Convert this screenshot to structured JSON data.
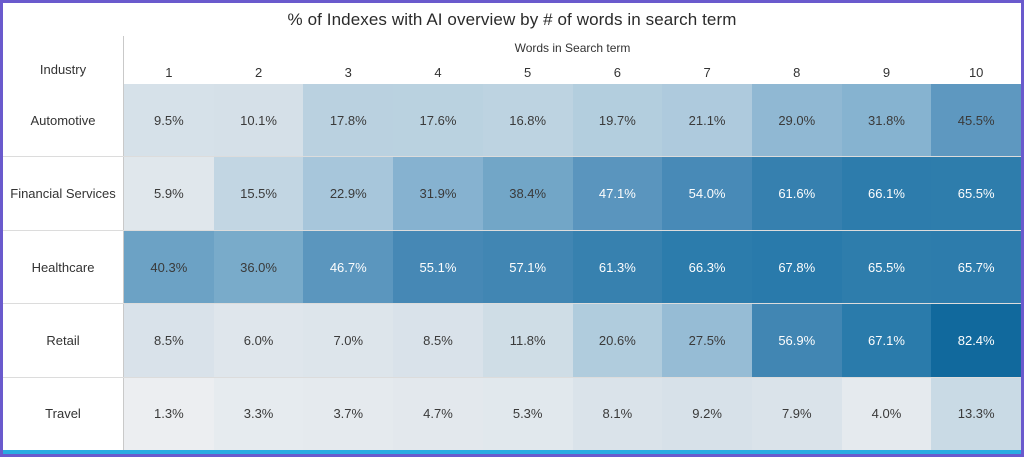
{
  "title": "% of Indexes with AI overview by # of words in search term",
  "axes": {
    "column_group_label": "Words in Search term",
    "row_group_label": "Industry"
  },
  "frame": {
    "border_color": "#6a5acd",
    "accent_bar_color": "#29abe2",
    "grid_line_color": "#c9c9c9"
  },
  "chart_data": {
    "type": "heatmap",
    "title": "% of Indexes with AI overview by # of words in search term",
    "xlabel": "Words in Search term",
    "ylabel": "Industry",
    "columns": [
      "1",
      "2",
      "3",
      "4",
      "5",
      "6",
      "7",
      "8",
      "9",
      "10"
    ],
    "rows": [
      "Automotive",
      "Financial Services",
      "Healthcare",
      "Retail",
      "Travel"
    ],
    "series": [
      {
        "name": "Automotive",
        "values": [
          9.5,
          10.1,
          17.8,
          17.6,
          16.8,
          19.7,
          21.1,
          29.0,
          31.8,
          45.5
        ]
      },
      {
        "name": "Financial Services",
        "values": [
          5.9,
          15.5,
          22.9,
          31.9,
          38.4,
          47.1,
          54.0,
          61.6,
          66.1,
          65.5
        ]
      },
      {
        "name": "Healthcare",
        "values": [
          40.3,
          36.0,
          46.7,
          55.1,
          57.1,
          61.3,
          66.3,
          67.8,
          65.5,
          65.7
        ]
      },
      {
        "name": "Retail",
        "values": [
          8.5,
          6.0,
          7.0,
          8.5,
          11.8,
          20.6,
          27.5,
          56.9,
          67.1,
          82.4
        ]
      },
      {
        "name": "Travel",
        "values": [
          1.3,
          3.3,
          3.7,
          4.7,
          5.3,
          8.1,
          9.2,
          7.9,
          4.0,
          13.3
        ]
      }
    ],
    "value_suffix": "%",
    "value_decimals": 1,
    "legend": "none",
    "color_scale": {
      "stops": [
        {
          "value": 0,
          "color": "#eff0f2"
        },
        {
          "value": 10,
          "color": "#d5e0e8"
        },
        {
          "value": 20,
          "color": "#b2cdde"
        },
        {
          "value": 30,
          "color": "#8cb6d2"
        },
        {
          "value": 40,
          "color": "#6da3c5"
        },
        {
          "value": 50,
          "color": "#528fbb"
        },
        {
          "value": 60,
          "color": "#3a82b0"
        },
        {
          "value": 70,
          "color": "#2478a9"
        },
        {
          "value": 85,
          "color": "#0d669b"
        }
      ],
      "white_text_threshold": 46,
      "dark_text_color": "#3a3a3a",
      "light_text_color": "#fdfdfd"
    }
  }
}
